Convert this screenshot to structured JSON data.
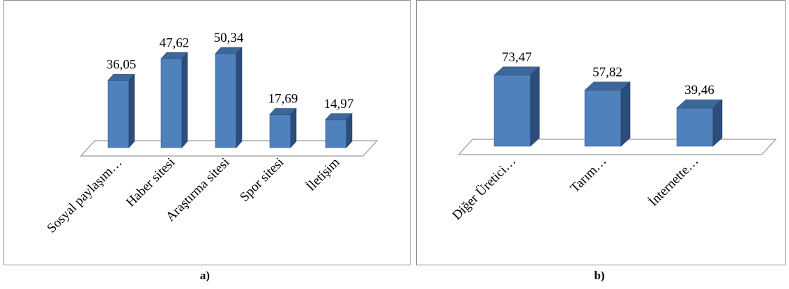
{
  "chart_data": [
    {
      "type": "bar",
      "categories": [
        "Sosyal paylaşım…",
        "Haber sitesi",
        "Araştırma sitesi",
        "Spor sitesi",
        "İletişim"
      ],
      "values": [
        36.05,
        47.62,
        50.34,
        17.69,
        14.97
      ],
      "data_labels": [
        "36,05",
        "47,62",
        "50,34",
        "17,69",
        "14,97"
      ],
      "caption": "a)",
      "ylim": [
        0,
        55
      ],
      "grid": false,
      "legend": "none",
      "color": "#4f81bd"
    },
    {
      "type": "bar",
      "categories": [
        "Diğer Üretici…",
        "Tarım…",
        "İnternette…"
      ],
      "values": [
        73.47,
        57.82,
        39.46
      ],
      "data_labels": [
        "73,47",
        "57,82",
        "39,46"
      ],
      "caption": "b)",
      "ylim": [
        0,
        80
      ],
      "grid": false,
      "legend": "none",
      "color": "#4f81bd"
    }
  ]
}
